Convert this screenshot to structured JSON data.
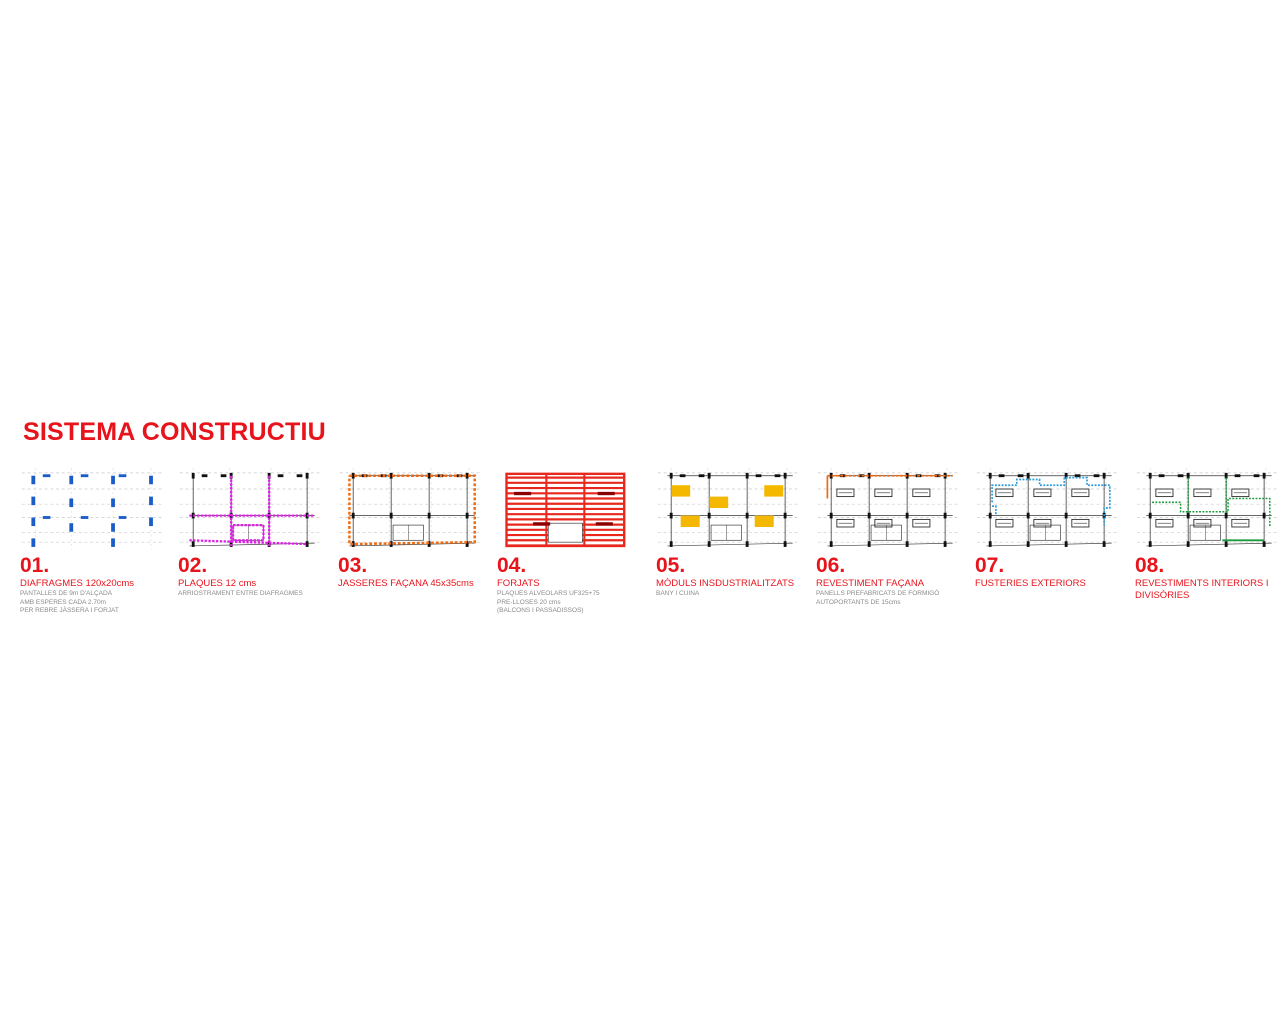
{
  "title": "SISTEMA CONSTRUCTIU",
  "colors": {
    "accent": "#e8141c",
    "blue_columns": "#1a5cc8",
    "magenta": "#e020e8",
    "orange": "#ef6a10",
    "red_slab": "#e8281c",
    "yellow": "#f5b800",
    "cyan": "#2a9ad8",
    "green": "#1c9a3c",
    "grey_text": "#8a8a8a"
  },
  "panels": [
    {
      "num": "01.",
      "title": "DIAFRAGMES 120x20cms",
      "lines": [
        "PANTALLES DE 9m D'ALÇADA",
        "AMB ESPERES CADA 2.70m",
        "PER REBRE JÀSSERA I FORJAT"
      ],
      "icon": "diaphragm-plan-icon"
    },
    {
      "num": "02.",
      "title": "PLAQUES 12 cms",
      "lines": [
        "ARRIOSTRAMENT ENTRE DIAFRAGMES"
      ],
      "icon": "plates-plan-icon"
    },
    {
      "num": "03.",
      "title": "JASSERES FAÇANA 45x35cms",
      "lines": [],
      "icon": "beams-plan-icon"
    },
    {
      "num": "04.",
      "title": "FORJATS",
      "lines": [
        "PLAQUES ALVEOLARS  UF325+75",
        "PRE-LLOSES 20 cms",
        "(BALCONS I PASSADISSOS)"
      ],
      "icon": "slabs-plan-icon"
    },
    {
      "num": "05.",
      "title": "MÒDULS INSDUSTRIALITZATS",
      "lines": [
        "BANY I CUINA"
      ],
      "icon": "modules-plan-icon"
    },
    {
      "num": "06.",
      "title": "REVESTIMENT FAÇANA",
      "lines": [
        "PANELLS PREFABRICATS DE FORMIGÓ",
        "AUTOPORTANTS DE 15cms"
      ],
      "icon": "facade-plan-icon"
    },
    {
      "num": "07.",
      "title": "FUSTERIES EXTERIORS",
      "lines": [],
      "icon": "carpentry-plan-icon"
    },
    {
      "num": "08.",
      "title": "REVESTIMENTS INTERIORS I DIVISÒRIES",
      "lines": [],
      "icon": "interiors-plan-icon"
    }
  ]
}
